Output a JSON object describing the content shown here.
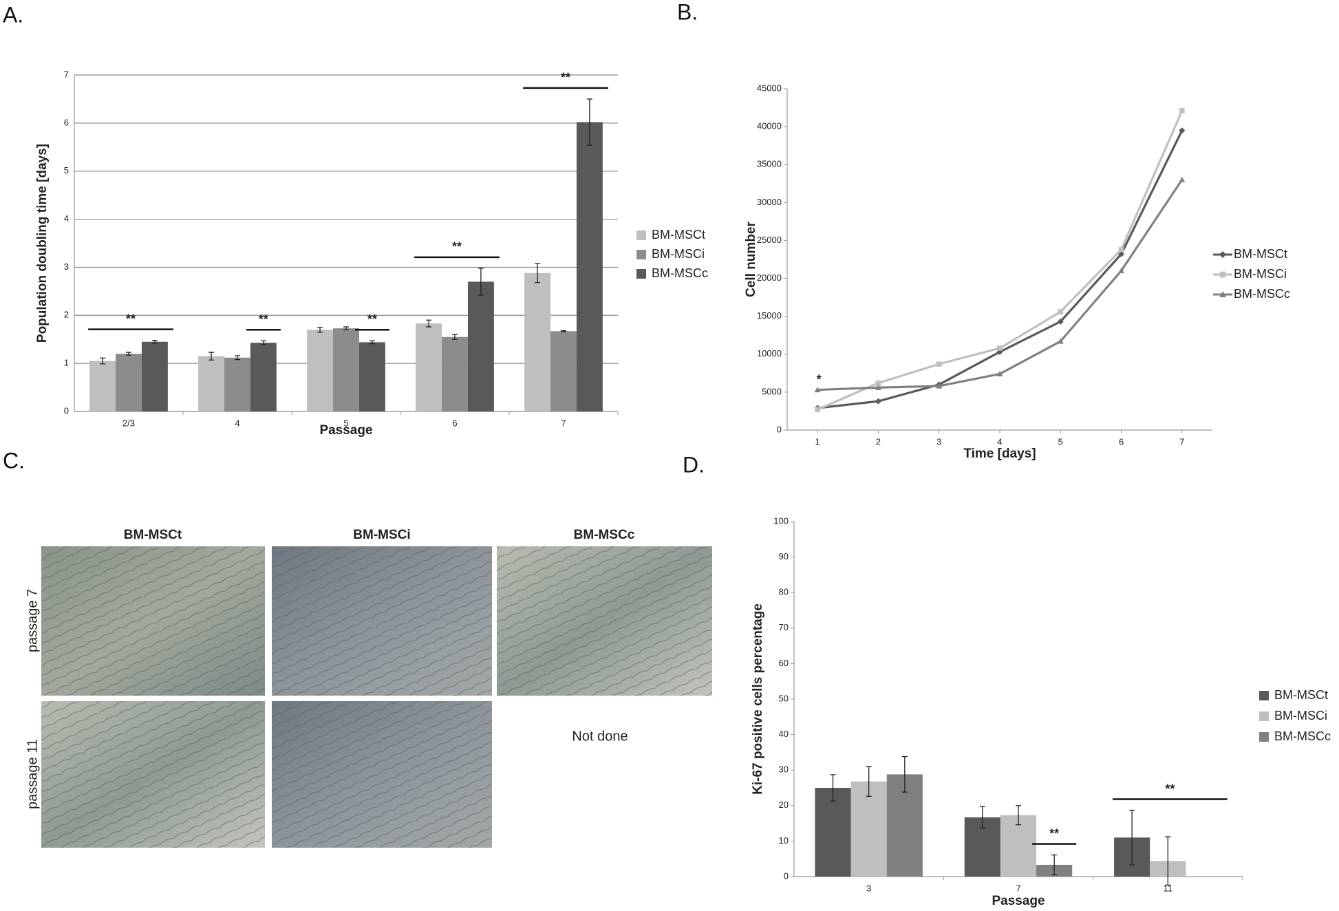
{
  "panels": [
    "A.",
    "B.",
    "C.",
    "D."
  ],
  "chart_data": [
    {
      "type": "bar",
      "y_label": "Population doubling time [days]",
      "x_label": "Passage",
      "categories": [
        "2/3",
        "4",
        "5",
        "6",
        "7"
      ],
      "series": [
        {
          "name": "BM-MSCt",
          "color": "#bfbfbf",
          "values": [
            1.05,
            1.15,
            1.7,
            1.83,
            2.88
          ],
          "errors": [
            0.06,
            0.08,
            0.05,
            0.07,
            0.2
          ]
        },
        {
          "name": "BM-MSCi",
          "color": "#8c8c8c",
          "values": [
            1.2,
            1.12,
            1.73,
            1.55,
            1.67
          ],
          "errors": [
            0.03,
            0.04,
            0.03,
            0.05,
            0.01
          ]
        },
        {
          "name": "BM-MSCc",
          "color": "#595959",
          "values": [
            1.45,
            1.43,
            1.44,
            2.7,
            6.02
          ],
          "errors": [
            0.03,
            0.04,
            0.03,
            0.28,
            0.48
          ]
        }
      ],
      "ylim": [
        0,
        7
      ],
      "yticks": [
        0,
        1,
        2,
        3,
        4,
        5,
        6,
        7
      ],
      "grid": true,
      "annotations": [
        {
          "text": "**",
          "category": "2/3"
        },
        {
          "text": "**",
          "category": "4",
          "series": "BM-MSCc"
        },
        {
          "text": "**",
          "category": "5",
          "series": "BM-MSCc"
        },
        {
          "text": "**",
          "category": "6"
        },
        {
          "text": "**",
          "category": "7"
        }
      ]
    },
    {
      "type": "line",
      "y_label": "Cell number",
      "x_label": "Time [days]",
      "x": [
        1,
        2,
        3,
        4,
        5,
        6,
        7
      ],
      "series": [
        {
          "name": "BM-MSCt",
          "color": "#595959",
          "marker": "diamond",
          "values": [
            2900,
            3800,
            6000,
            10300,
            14300,
            23200,
            39500
          ]
        },
        {
          "name": "BM-MSCi",
          "color": "#bfbfbf",
          "marker": "square",
          "values": [
            2700,
            6200,
            8700,
            10800,
            15600,
            23800,
            42100
          ]
        },
        {
          "name": "BM-MSCc",
          "color": "#808080",
          "marker": "triangle",
          "values": [
            5300,
            5600,
            5800,
            7400,
            11700,
            21000,
            33000
          ]
        }
      ],
      "xlim": [
        0.5,
        7.5
      ],
      "xticks": [
        1,
        2,
        3,
        4,
        5,
        6,
        7
      ],
      "ylim": [
        0,
        45000
      ],
      "yticks": [
        0,
        5000,
        10000,
        15000,
        20000,
        25000,
        30000,
        35000,
        40000,
        45000
      ],
      "grid": false,
      "annotations": [
        {
          "text": "*",
          "x": 1
        }
      ]
    },
    {
      "type": "bar",
      "y_label": "Ki-67 positive cells percentage",
      "x_label": "Passage",
      "categories": [
        "3",
        "7",
        "11"
      ],
      "series": [
        {
          "name": "BM-MSCt",
          "color": "#595959",
          "values": [
            25,
            16.7,
            11
          ],
          "errors": [
            3.7,
            3,
            7.7
          ]
        },
        {
          "name": "BM-MSCi",
          "color": "#bfbfbf",
          "values": [
            26.8,
            17.3,
            4.4
          ],
          "errors": [
            4.2,
            2.7,
            6.8
          ]
        },
        {
          "name": "BM-MSCc",
          "color": "#808080",
          "values": [
            28.8,
            3.3,
            null
          ],
          "errors": [
            5,
            2.8,
            null
          ]
        }
      ],
      "ylim": [
        0,
        100
      ],
      "yticks": [
        0,
        10,
        20,
        30,
        40,
        50,
        60,
        70,
        80,
        90,
        100
      ],
      "grid": false,
      "annotations": [
        {
          "text": "**",
          "category": "7",
          "series": "BM-MSCc"
        },
        {
          "text": "**",
          "category": "11"
        }
      ]
    }
  ],
  "panel_c": {
    "columns": [
      "BM-MSCt",
      "BM-MSCi",
      "BM-MSCc"
    ],
    "rows": [
      "passage 7",
      "passage 11"
    ],
    "not_done": "Not done"
  }
}
